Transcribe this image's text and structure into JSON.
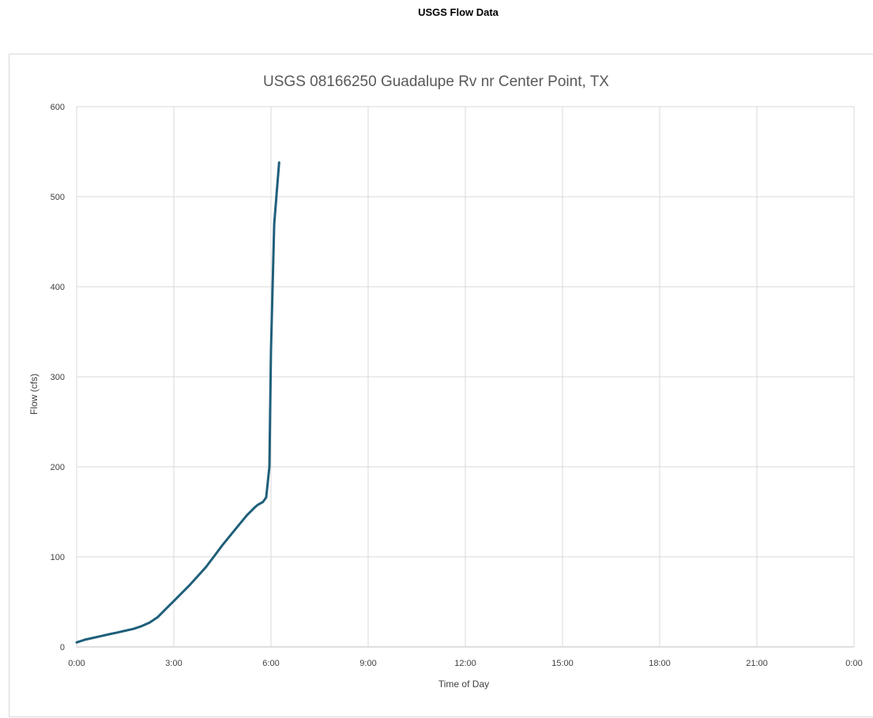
{
  "page": {
    "heading": "USGS Flow Data"
  },
  "chart_data": {
    "type": "line",
    "title": "USGS 08166250 Guadalupe Rv nr Center Point, TX",
    "xlabel": "Time of Day",
    "ylabel": "Flow (cfs)",
    "x_unit": "hours",
    "xlim": [
      0,
      24
    ],
    "ylim": [
      0,
      600
    ],
    "x_ticks": [
      {
        "value": 0,
        "label": "0:00"
      },
      {
        "value": 3,
        "label": "3:00"
      },
      {
        "value": 6,
        "label": "6:00"
      },
      {
        "value": 9,
        "label": "9:00"
      },
      {
        "value": 12,
        "label": "12:00"
      },
      {
        "value": 15,
        "label": "15:00"
      },
      {
        "value": 18,
        "label": "18:00"
      },
      {
        "value": 21,
        "label": "21:00"
      },
      {
        "value": 24,
        "label": "0:00"
      }
    ],
    "y_ticks": [
      0,
      100,
      200,
      300,
      400,
      500,
      600
    ],
    "grid": true,
    "legend": "none",
    "line_color": "#1f5f7a",
    "series": [
      {
        "x": [
          0,
          0.25,
          0.5,
          0.75,
          1.0,
          1.25,
          1.5,
          1.75,
          2.0,
          2.25,
          2.5,
          2.75,
          3.0,
          3.25,
          3.5,
          3.75,
          4.0,
          4.25,
          4.5,
          4.75,
          5.0,
          5.25,
          5.5,
          5.6,
          5.75,
          5.85,
          5.95,
          6.0,
          6.1,
          6.25
        ],
        "y": [
          5,
          8,
          10,
          12,
          14,
          16,
          18,
          20,
          23,
          27,
          33,
          42,
          51,
          60,
          69,
          79,
          89,
          101,
          113,
          124,
          135,
          146,
          155,
          158,
          161,
          166,
          200,
          330,
          470,
          538
        ]
      }
    ]
  }
}
